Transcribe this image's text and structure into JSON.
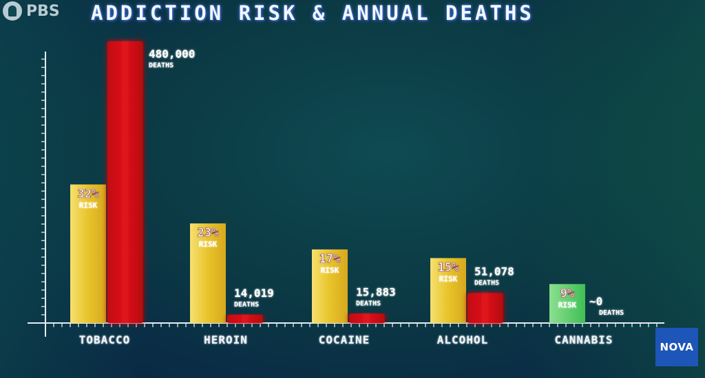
{
  "title": "ADDICTION RISK & ANNUAL DEATHS",
  "logos": {
    "pbs": "PBS",
    "nova": "NOVA"
  },
  "colors": {
    "risk_bar": "#e8c830",
    "risk_bar_cannabis": "#5ccf6a",
    "deaths_bar": "#d40c14",
    "axis": "#e8eef2"
  },
  "chart_data": {
    "type": "bar",
    "title": "ADDICTION RISK & ANNUAL DEATHS",
    "categories": [
      "TOBACCO",
      "HEROIN",
      "COCAINE",
      "ALCOHOL",
      "CANNABIS"
    ],
    "series": [
      {
        "name": "RISK",
        "unit": "%",
        "values": [
          32,
          23,
          17,
          15,
          9
        ],
        "labels": [
          "32%",
          "23%",
          "17%",
          "15%",
          "9%"
        ],
        "sublabel": "RISK"
      },
      {
        "name": "DEATHS",
        "values": [
          480000,
          14019,
          15883,
          51078,
          0
        ],
        "labels": [
          "480,000",
          "14,019",
          "15,883",
          "51,078",
          "~0"
        ],
        "sublabel": "DEATHS"
      }
    ],
    "grid": false,
    "legend": "none"
  }
}
